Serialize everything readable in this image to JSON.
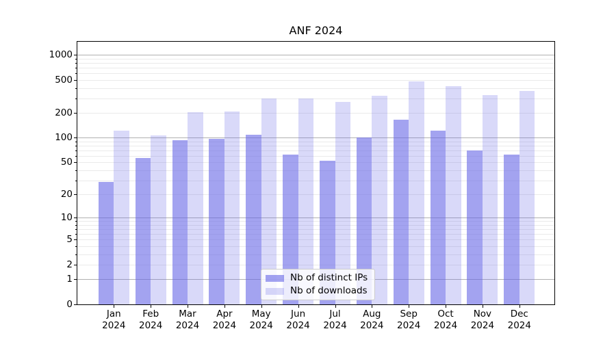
{
  "chart_data": {
    "type": "bar",
    "title": "ANF 2024",
    "categories": [
      "Jan 2024",
      "Feb 2024",
      "Mar 2024",
      "Apr 2024",
      "May 2024",
      "Jun 2024",
      "Jul 2024",
      "Aug 2024",
      "Sep 2024",
      "Oct 2024",
      "Nov 2024",
      "Dec 2024"
    ],
    "series": [
      {
        "name": "Nb of distinct IPs",
        "color": "rgba(102,102,230,0.6)",
        "values": [
          29,
          57,
          93,
          97,
          108,
          62,
          52,
          100,
          165,
          123,
          70,
          63
        ]
      },
      {
        "name": "Nb of downloads",
        "color": "rgba(102,102,230,0.25)",
        "values": [
          123,
          106,
          205,
          210,
          300,
          300,
          273,
          325,
          476,
          417,
          330,
          365
        ]
      }
    ],
    "xlabel": "",
    "ylabel": "",
    "yscale": "log1p",
    "yticks": [
      0,
      1,
      2,
      5,
      10,
      20,
      50,
      100,
      200,
      500,
      1000
    ],
    "ylim": [
      0,
      1460
    ],
    "grid": {
      "horizontal": true,
      "major_color": "#b0b0b0",
      "minor_color": "#eaeaea",
      "major_at": [
        1,
        10,
        100,
        1000
      ]
    },
    "legend_position": "lower center",
    "axis_color": "#000000",
    "background": "#ffffff"
  }
}
